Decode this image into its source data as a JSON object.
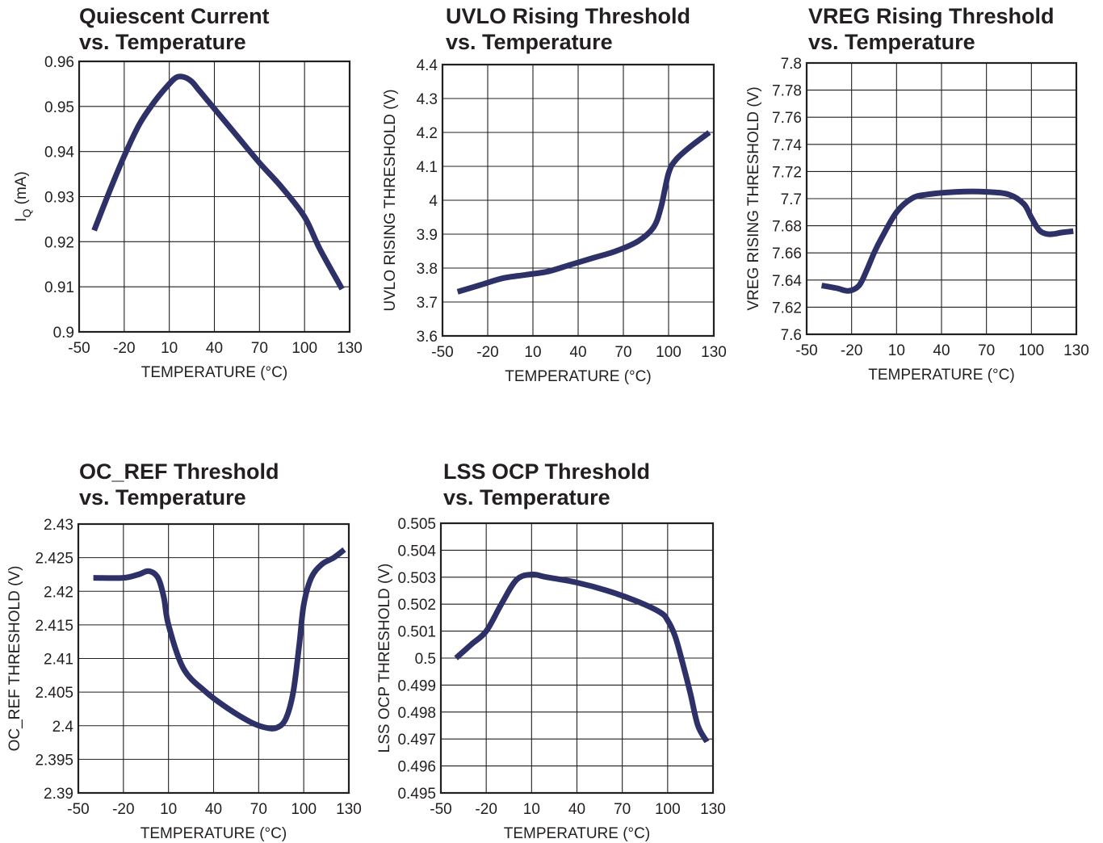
{
  "charts": [
    {
      "title_line1": "Quiescent Current",
      "title_line2": "vs. Temperature",
      "chart_data": {
        "type": "line",
        "title": "Quiescent Current vs. Temperature",
        "xlabel": "TEMPERATURE (°C)",
        "ylabel": "I",
        "ylabel_sub": "Q",
        "ylabel_unit": " (mA)",
        "xlim": [
          -50,
          130
        ],
        "ylim": [
          0.9,
          0.96
        ],
        "xticks": [
          -50,
          -20,
          10,
          40,
          70,
          100,
          130
        ],
        "yticks": [
          "0.9",
          "0.91",
          "0.92",
          "0.93",
          "0.94",
          "0.95",
          "0.96"
        ],
        "grid": true,
        "line_color": "#2e3168",
        "x": [
          -40,
          -30,
          -20,
          -10,
          0,
          10,
          15,
          20,
          25,
          30,
          40,
          55,
          70,
          85,
          100,
          110,
          125
        ],
        "y": [
          0.9225,
          0.931,
          0.939,
          0.946,
          0.951,
          0.955,
          0.9565,
          0.9565,
          0.9555,
          0.9535,
          0.9495,
          0.9435,
          0.9375,
          0.932,
          0.9255,
          0.9185,
          0.9095
        ]
      }
    },
    {
      "title_line1": "UVLO Rising Threshold",
      "title_line2": "vs. Temperature",
      "chart_data": {
        "type": "line",
        "title": "UVLO Rising Threshold vs. Temperature",
        "xlabel": "TEMPERATURE (°C)",
        "ylabel": "UVLO RISING THRESHOLD (V)",
        "xlim": [
          -50,
          130
        ],
        "ylim": [
          3.6,
          4.4
        ],
        "xticks": [
          -50,
          -20,
          10,
          40,
          70,
          100,
          130
        ],
        "yticks": [
          "3.6",
          "3.7",
          "3.8",
          "3.9",
          "4",
          "4.1",
          "4.2",
          "4.3",
          "4.4"
        ],
        "grid": true,
        "line_color": "#2e3168",
        "x": [
          -40,
          -25,
          -10,
          5,
          20,
          35,
          50,
          65,
          80,
          90,
          95,
          100,
          105,
          115,
          127
        ],
        "y": [
          3.73,
          3.75,
          3.77,
          3.78,
          3.79,
          3.81,
          3.83,
          3.85,
          3.88,
          3.92,
          3.98,
          4.08,
          4.12,
          4.16,
          4.2
        ]
      }
    },
    {
      "title_line1": "VREG Rising Threshold",
      "title_line2": "vs. Temperature",
      "chart_data": {
        "type": "line",
        "title": "VREG Rising Threshold vs. Temperature",
        "xlabel": "TEMPERATURE (°C)",
        "ylabel": "VREG RISING THRESHOLD (V)",
        "xlim": [
          -50,
          130
        ],
        "ylim": [
          7.6,
          7.8
        ],
        "xticks": [
          -50,
          -20,
          10,
          40,
          70,
          100,
          130
        ],
        "yticks": [
          "7.6",
          "7.62",
          "7.64",
          "7.66",
          "7.68",
          "7.7",
          "7.72",
          "7.74",
          "7.76",
          "7.78",
          "7.8"
        ],
        "grid": true,
        "line_color": "#2e3168",
        "x": [
          -40,
          -30,
          -22,
          -15,
          -10,
          -5,
          0,
          10,
          20,
          30,
          50,
          70,
          85,
          95,
          100,
          105,
          110,
          115,
          120,
          128
        ],
        "y": [
          7.636,
          7.634,
          7.632,
          7.636,
          7.647,
          7.66,
          7.671,
          7.69,
          7.7,
          7.703,
          7.705,
          7.705,
          7.703,
          7.696,
          7.686,
          7.677,
          7.674,
          7.674,
          7.675,
          7.676
        ]
      }
    },
    {
      "title_line1": "OC_REF Threshold",
      "title_line2": "vs. Temperature",
      "chart_data": {
        "type": "line",
        "title": "OC_REF Threshold vs. Temperature",
        "xlabel": "TEMPERATURE (°C)",
        "ylabel": "OC_REF THRESHOLD (V)",
        "xlim": [
          -50,
          130
        ],
        "ylim": [
          2.39,
          2.43
        ],
        "xticks": [
          -50,
          -20,
          10,
          40,
          70,
          100,
          130
        ],
        "yticks": [
          "2.39",
          "2.395",
          "2.4",
          "2.405",
          "2.41",
          "2.415",
          "2.42",
          "2.425",
          "2.43"
        ],
        "grid": true,
        "line_color": "#2e3168",
        "x": [
          -40,
          -20,
          -10,
          -3,
          3,
          7,
          10,
          20,
          35,
          50,
          65,
          75,
          82,
          88,
          93,
          97,
          100,
          105,
          112,
          120,
          127
        ],
        "y": [
          2.422,
          2.422,
          2.4225,
          2.423,
          2.422,
          2.419,
          2.415,
          2.4085,
          2.405,
          2.4025,
          2.4005,
          2.3997,
          2.3997,
          2.401,
          2.405,
          2.412,
          2.418,
          2.422,
          2.424,
          2.425,
          2.4262
        ]
      }
    },
    {
      "title_line1": "LSS OCP Threshold",
      "title_line2": "vs. Temperature",
      "chart_data": {
        "type": "line",
        "title": "LSS OCP Threshold vs. Temperature",
        "xlabel": "TEMPERATURE (°C)",
        "ylabel": "LSS OCP THRESHOLD (V)",
        "xlim": [
          -50,
          130
        ],
        "ylim": [
          0.495,
          0.505
        ],
        "xticks": [
          -50,
          -20,
          10,
          40,
          70,
          100,
          130
        ],
        "yticks": [
          "0.495",
          "0.496",
          "0.497",
          "0.498",
          "0.499",
          "0.5",
          "0.501",
          "0.502",
          "0.503",
          "0.504",
          "0.505"
        ],
        "grid": true,
        "line_color": "#2e3168",
        "x": [
          -40,
          -30,
          -20,
          -10,
          0,
          10,
          20,
          40,
          60,
          80,
          95,
          100,
          105,
          110,
          115,
          120,
          126
        ],
        "y": [
          0.5,
          0.5005,
          0.501,
          0.502,
          0.5029,
          0.5031,
          0.503,
          0.5028,
          0.5025,
          0.5021,
          0.5017,
          0.5014,
          0.5008,
          0.4998,
          0.4987,
          0.4975,
          0.4969
        ]
      }
    }
  ]
}
